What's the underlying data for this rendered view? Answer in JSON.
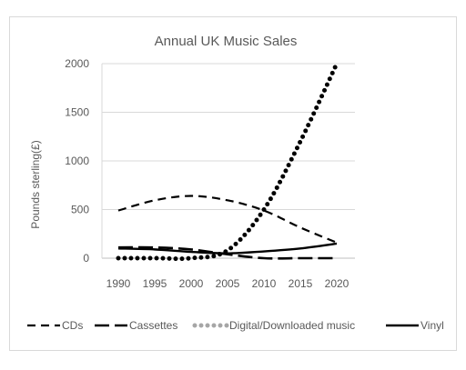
{
  "chart_data": {
    "type": "line",
    "title": "Annual UK Music Sales",
    "xlabel": "",
    "ylabel": "Pounds sterling(£)",
    "categories": [
      "1990",
      "1995",
      "2000",
      "2005",
      "2010",
      "2015",
      "2020"
    ],
    "x": [
      1990,
      1995,
      2000,
      2005,
      2010,
      2015,
      2020
    ],
    "yticks": [
      "0",
      "500",
      "1000",
      "1500",
      "2000"
    ],
    "ylim": [
      0,
      2000
    ],
    "grid": "horizontal",
    "legend": "bottom",
    "series": [
      {
        "name": "CDs",
        "style": "dashed",
        "color": "#000000",
        "values": [
          490,
          595,
          640,
          595,
          490,
          315,
          160
        ]
      },
      {
        "name": "Cassettes",
        "style": "long-dash",
        "color": "#000000",
        "values": [
          110,
          110,
          90,
          40,
          0,
          0,
          0
        ]
      },
      {
        "name": "Digital/Downloaded music",
        "style": "dotted",
        "color": "#000000",
        "values": [
          0,
          0,
          0,
          80,
          500,
          1200,
          2000
        ]
      },
      {
        "name": "Vinyl",
        "style": "solid",
        "color": "#000000",
        "values": [
          100,
          90,
          65,
          50,
          70,
          100,
          150
        ]
      }
    ]
  }
}
